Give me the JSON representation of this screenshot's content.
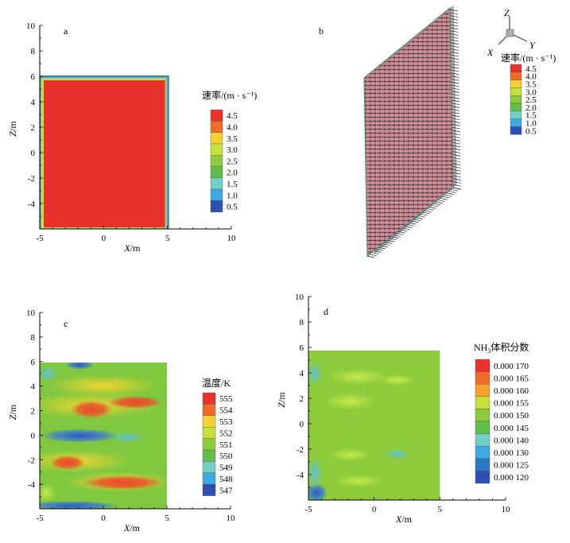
{
  "chart_data": [
    {
      "panel": "a",
      "type": "heatmap",
      "xlabel_var": "X",
      "xlabel_unit": "/m",
      "ylabel_var": "Z",
      "ylabel_unit": "/m",
      "xlim": [
        -5,
        10
      ],
      "ylim": [
        -6,
        10
      ],
      "xticks": [
        "-5",
        "0",
        "5",
        "10"
      ],
      "yticks": [
        "10",
        "8",
        "6",
        "4",
        "2",
        "0",
        "-2",
        "-4"
      ],
      "field_extent": {
        "x": [
          -5,
          5
        ],
        "z": [
          -6,
          6
        ]
      },
      "dominant_value": 4.4,
      "legend_title": "速率/(m · s⁻¹)",
      "legend_levels": [
        "4.5",
        "4.0",
        "3.5",
        "3.0",
        "2.5",
        "2.0",
        "1.5",
        "1.0",
        "0.5"
      ],
      "legend_colors": [
        "#e8322b",
        "#f06a2a",
        "#f6d12f",
        "#c8e03a",
        "#8ccc3c",
        "#5fbf48",
        "#72cfc4",
        "#3fa8e0",
        "#2b4fb3"
      ]
    },
    {
      "panel": "b",
      "type": "other",
      "description_visible": "3D perspective view of velocity vectors on a vertical plane",
      "axes_triad": {
        "z": "Z",
        "x": "X",
        "y": "Y"
      },
      "legend_title": "速率/(m · s⁻¹)",
      "legend_levels": [
        "4.5",
        "4.0",
        "3.5",
        "3.0",
        "2.5",
        "2.0",
        "1.5",
        "1.0",
        "0.5"
      ],
      "legend_colors": [
        "#e8322b",
        "#f06a2a",
        "#f6d12f",
        "#c8e03a",
        "#8ccc3c",
        "#5fbf48",
        "#72cfc4",
        "#3fa8e0",
        "#2b4fb3"
      ]
    },
    {
      "panel": "c",
      "type": "heatmap",
      "xlabel_var": "X",
      "xlabel_unit": "/m",
      "ylabel_var": "Z",
      "ylabel_unit": "/m",
      "xlim": [
        -5,
        10
      ],
      "ylim": [
        -6,
        10
      ],
      "xticks": [
        "-5",
        "0",
        "5",
        "10"
      ],
      "yticks": [
        "10",
        "8",
        "6",
        "4",
        "2",
        "0",
        "-2",
        "-4"
      ],
      "field_extent": {
        "x": [
          -5,
          5
        ],
        "z": [
          -6,
          6
        ]
      },
      "legend_title": "温度/K",
      "legend_levels": [
        "555",
        "554",
        "553",
        "552",
        "551",
        "550",
        "549",
        "548",
        "547"
      ],
      "legend_colors": [
        "#e8322b",
        "#f06a2a",
        "#f6d12f",
        "#c8e03a",
        "#8ccc3c",
        "#5fbf48",
        "#72cfc4",
        "#3fa8e0",
        "#2b4fb3"
      ]
    },
    {
      "panel": "d",
      "type": "heatmap",
      "xlabel_var": "X",
      "xlabel_unit": "/m",
      "ylabel_var": "Z",
      "ylabel_unit": "/m",
      "xlim": [
        -5,
        10
      ],
      "ylim": [
        -6,
        10
      ],
      "xticks": [
        "-5",
        "0",
        "5",
        "10"
      ],
      "yticks": [
        "10",
        "8",
        "6",
        "4",
        "2",
        "0",
        "-2",
        "-4"
      ],
      "field_extent": {
        "x": [
          -5,
          5
        ],
        "z": [
          -6,
          6
        ]
      },
      "legend_title_main": "NH",
      "legend_title_sub": "3",
      "legend_title_rest": "体积分数",
      "legend_levels": [
        "0.000 170",
        "0.000 165",
        "0.000 160",
        "0.000 155",
        "0.000 150",
        "0.000 145",
        "0.000 140",
        "0.000 130",
        "0.000 125",
        "0.000 120"
      ],
      "legend_colors": [
        "#e8322b",
        "#f06a2a",
        "#f6a22f",
        "#c8e03a",
        "#8ccc3c",
        "#5fbf48",
        "#72cfc4",
        "#3fa8e0",
        "#2b78c9",
        "#2b4fb3"
      ]
    }
  ]
}
